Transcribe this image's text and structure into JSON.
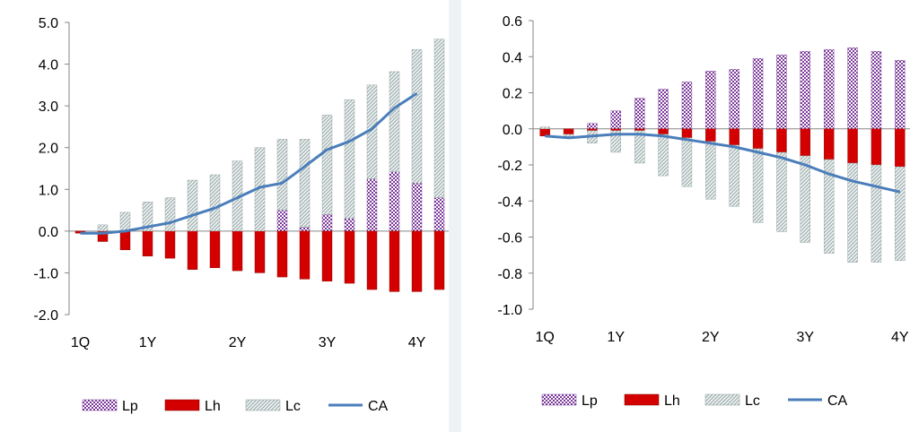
{
  "chart_data": [
    {
      "type": "bar",
      "stacked_pos_neg": true,
      "x_tick_labels": [
        "1Q",
        "1Y",
        "2Y",
        "3Y",
        "4Y"
      ],
      "x_tick_index": [
        0,
        3,
        7,
        11,
        15
      ],
      "ylim": [
        -2.0,
        5.0
      ],
      "yticks": [
        "5.0",
        "4.0",
        "3.0",
        "2.0",
        "1.0",
        "0.0",
        "-1.0",
        "-2.0"
      ],
      "ytick_values": [
        5,
        4,
        3,
        2,
        1,
        0,
        -1,
        -2
      ],
      "grid": false,
      "legend_position": "bottom",
      "series": [
        {
          "name": "Lp",
          "kind": "bar",
          "values": [
            0,
            0,
            0,
            0,
            0,
            0,
            0,
            0,
            0,
            0.5,
            0.1,
            0.4,
            0.3,
            1.25,
            1.42,
            1.15,
            0.8
          ]
        },
        {
          "name": "Lh",
          "kind": "bar",
          "values": [
            -0.05,
            -0.25,
            -0.45,
            -0.6,
            -0.65,
            -0.92,
            -0.88,
            -0.95,
            -1.0,
            -1.1,
            -1.15,
            -1.2,
            -1.25,
            -1.4,
            -1.45,
            -1.45,
            -1.4
          ]
        },
        {
          "name": "Lc",
          "kind": "bar",
          "values": [
            0.0,
            0.15,
            0.45,
            0.7,
            0.8,
            1.22,
            1.35,
            1.68,
            2.0,
            1.7,
            2.1,
            2.38,
            2.85,
            2.25,
            2.4,
            3.2,
            3.8
          ]
        },
        {
          "name": "CA",
          "kind": "line",
          "values": [
            -0.05,
            -0.05,
            0.0,
            0.1,
            0.2,
            0.38,
            0.55,
            0.8,
            1.05,
            1.15,
            1.55,
            1.95,
            2.15,
            2.45,
            2.95,
            3.3,
            null
          ]
        }
      ]
    },
    {
      "type": "bar",
      "stacked_pos_neg": true,
      "x_tick_labels": [
        "1Q",
        "1Y",
        "2Y",
        "3Y",
        "4Y"
      ],
      "x_tick_index": [
        0,
        3,
        7,
        11,
        15
      ],
      "ylim": [
        -1.0,
        0.6
      ],
      "yticks": [
        "0.6",
        "0.4",
        "0.2",
        "0.0",
        "-0.2",
        "-0.4",
        "-0.6",
        "-0.8",
        "-1.0"
      ],
      "ytick_values": [
        0.6,
        0.4,
        0.2,
        0,
        -0.2,
        -0.4,
        -0.6,
        -0.8,
        -1.0
      ],
      "grid": false,
      "legend_position": "bottom",
      "series": [
        {
          "name": "Lp",
          "kind": "bar",
          "values": [
            0.0,
            0.0,
            0.03,
            0.1,
            0.17,
            0.22,
            0.26,
            0.32,
            0.33,
            0.39,
            0.41,
            0.43,
            0.44,
            0.45,
            0.43,
            0.38
          ]
        },
        {
          "name": "Lh",
          "kind": "bar",
          "values": [
            -0.04,
            -0.03,
            -0.01,
            -0.01,
            -0.01,
            -0.03,
            -0.05,
            -0.07,
            -0.09,
            -0.11,
            -0.13,
            -0.15,
            -0.17,
            -0.19,
            -0.2,
            -0.21
          ]
        },
        {
          "name": "Lc",
          "kind": "bar",
          "values": [
            0.01,
            -0.02,
            -0.07,
            -0.12,
            -0.18,
            -0.23,
            -0.27,
            -0.32,
            -0.34,
            -0.41,
            -0.44,
            -0.48,
            -0.52,
            -0.55,
            -0.54,
            -0.52
          ]
        },
        {
          "name": "CA",
          "kind": "line",
          "values": [
            -0.04,
            -0.05,
            -0.04,
            -0.03,
            -0.03,
            -0.04,
            -0.06,
            -0.08,
            -0.1,
            -0.13,
            -0.16,
            -0.2,
            -0.25,
            -0.29,
            -0.32,
            -0.35
          ]
        }
      ]
    }
  ],
  "colors": {
    "Lp_a": "#7b3a9a",
    "Lp_b": "#ffffff",
    "Lh": "#d40000",
    "Lh_edge": "#800000",
    "Lc_a": "#a9b8b8",
    "Lc_b": "#ffffff",
    "CA": "#4a7ebb",
    "axis": "#868686"
  },
  "icons": [
    "hatched-pattern-icon",
    "red-bar-icon",
    "diagonal-pattern-icon",
    "blue-line-icon"
  ]
}
